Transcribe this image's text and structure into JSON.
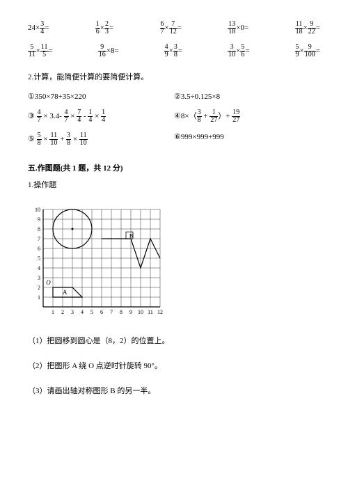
{
  "row1": {
    "c1": {
      "a": "24",
      "n": "3",
      "d": "4",
      "after": "="
    },
    "c2": {
      "n1": "1",
      "d1": "6",
      "n2": "2",
      "d2": "3",
      "after": "="
    },
    "c3": {
      "n1": "6",
      "d1": "7",
      "n2": "7",
      "d2": "12",
      "after": "="
    },
    "c4": {
      "n1": "13",
      "d1": "18",
      "n2": "0",
      "after": "="
    },
    "c5": {
      "n1": "11",
      "d1": "18",
      "n2": "9",
      "d2": "22",
      "after": "="
    }
  },
  "row2": {
    "c1": {
      "n1": "5",
      "d1": "11",
      "n2": "11",
      "d2": "5",
      "after": "="
    },
    "c2": {
      "n1": "9",
      "d1": "16",
      "a": "8",
      "after": "="
    },
    "c3": {
      "n1": "4",
      "d1": "9",
      "n2": "3",
      "d2": "8",
      "after": "="
    },
    "c4": {
      "n1": "3",
      "d1": "10",
      "n2": "5",
      "d2": "6",
      "after": "="
    },
    "c5": {
      "n1": "5",
      "d1": "9",
      "n2": "9",
      "d2": "100",
      "after": "="
    }
  },
  "p2_intro": "2.计算，能简便计算的要简便计算。",
  "sp1": {
    "label": "①",
    "text": "350×78+35×220"
  },
  "sp2": {
    "label": "②",
    "text": "3.5÷0.125×8"
  },
  "sp3": {
    "label": "③"
  },
  "sp3_parts": {
    "a": {
      "n": "4",
      "d": "7"
    },
    "b": "3.4",
    "c": {
      "n": "4",
      "d": "7"
    },
    "d": {
      "n": "7",
      "d": "4"
    },
    "e": {
      "n": "1",
      "d": "4"
    }
  },
  "sp4": {
    "label": "④",
    "a": "8",
    "b": {
      "n": "3",
      "d": "8"
    },
    "c": {
      "n": "1",
      "d": "27"
    },
    "d": {
      "n": "19",
      "d": "27"
    }
  },
  "sp5": {
    "label": "⑤",
    "a": {
      "n": "5",
      "d": "8"
    },
    "b": {
      "n": "11",
      "d": "10"
    },
    "c": {
      "n": "3",
      "d": "8"
    },
    "d": {
      "n": "11",
      "d": "10"
    }
  },
  "sp6": {
    "label": "⑥",
    "text": "999×999+999"
  },
  "section5": "五.作图题(共 1 题，共 12 分)",
  "q1": "1.操作题",
  "sub1": "（1）把圆移到圆心是（8，2）的位置上。",
  "sub2": "（2）把图形 A 绕 O 点逆时针旋转 90°。",
  "sub3": "（3）请画出轴对称图形 B 的另一半。",
  "chart": {
    "xticks": [
      "1",
      "2",
      "3",
      "4",
      "5",
      "6",
      "7",
      "8",
      "9",
      "10",
      "11",
      "12"
    ],
    "yticks": [
      "1",
      "2",
      "3",
      "4",
      "5",
      "6",
      "7",
      "8",
      "9",
      "10"
    ],
    "labelO": "O",
    "labelA": "A",
    "labelB": "B"
  }
}
